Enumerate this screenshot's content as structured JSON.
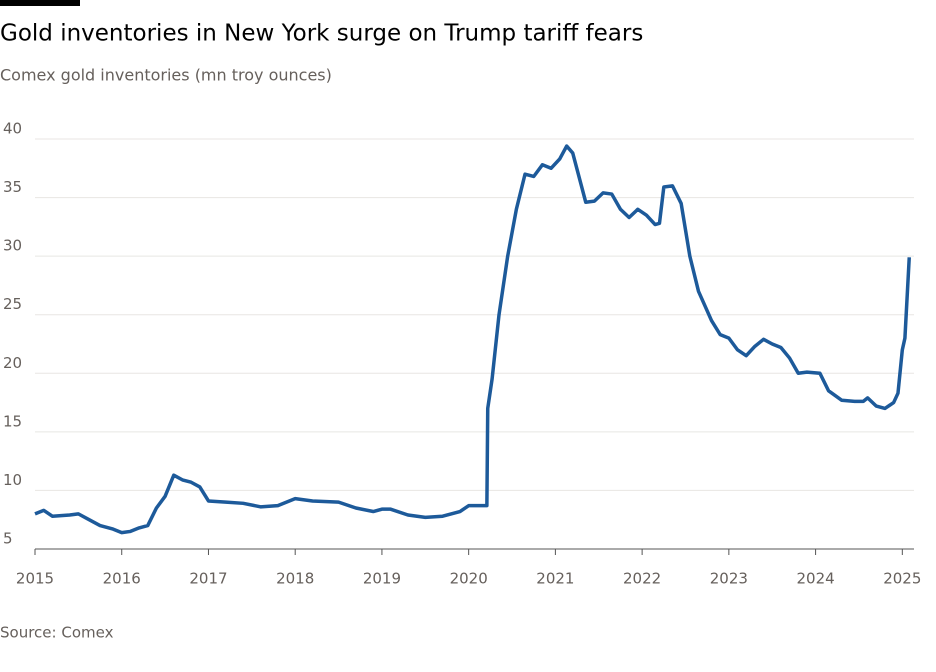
{
  "chart_data": {
    "type": "line",
    "title": "Gold inventories in New York surge on Trump tariff fears",
    "subtitle": "Comex gold inventories (mn troy ounces)",
    "source": "Source: Comex",
    "x": [
      2015.0,
      2015.1,
      2015.2,
      2015.4,
      2015.5,
      2015.6,
      2015.75,
      2015.9,
      2016.0,
      2016.1,
      2016.2,
      2016.3,
      2016.4,
      2016.5,
      2016.6,
      2016.7,
      2016.8,
      2016.9,
      2017.0,
      2017.2,
      2017.4,
      2017.6,
      2017.8,
      2018.0,
      2018.2,
      2018.5,
      2018.7,
      2018.9,
      2019.0,
      2019.1,
      2019.3,
      2019.5,
      2019.7,
      2019.9,
      2020.0,
      2020.21,
      2020.22,
      2020.27,
      2020.35,
      2020.45,
      2020.55,
      2020.65,
      2020.75,
      2020.85,
      2020.95,
      2021.05,
      2021.13,
      2021.2,
      2021.3,
      2021.35,
      2021.45,
      2021.55,
      2021.65,
      2021.75,
      2021.85,
      2021.95,
      2022.05,
      2022.15,
      2022.2,
      2022.25,
      2022.35,
      2022.45,
      2022.55,
      2022.65,
      2022.8,
      2022.9,
      2023.0,
      2023.1,
      2023.2,
      2023.3,
      2023.4,
      2023.5,
      2023.6,
      2023.7,
      2023.8,
      2023.9,
      2024.05,
      2024.15,
      2024.3,
      2024.45,
      2024.55,
      2024.6,
      2024.7,
      2024.8,
      2024.9,
      2024.95,
      2025.0,
      2025.03,
      2025.08
    ],
    "series": [
      {
        "name": "Comex gold inventories",
        "color": "#1d5a9a",
        "values": [
          8.0,
          8.3,
          7.8,
          7.9,
          8.0,
          7.6,
          7.0,
          6.7,
          6.4,
          6.5,
          6.8,
          7.0,
          8.5,
          9.5,
          11.3,
          10.9,
          10.7,
          10.3,
          9.1,
          9.0,
          8.9,
          8.6,
          8.7,
          9.3,
          9.1,
          9.0,
          8.5,
          8.2,
          8.4,
          8.4,
          7.9,
          7.7,
          7.8,
          8.2,
          8.7,
          8.7,
          17,
          19.5,
          25,
          30,
          34,
          37,
          36.8,
          37.8,
          37.5,
          38.3,
          39.4,
          38.8,
          36,
          34.6,
          34.7,
          35.4,
          35.3,
          34.0,
          33.3,
          34.0,
          33.5,
          32.7,
          32.8,
          35.9,
          36.0,
          34.5,
          30,
          27,
          24.5,
          23.3,
          23.0,
          22.0,
          21.5,
          22.3,
          22.9,
          22.5,
          22.2,
          21.3,
          20.0,
          20.1,
          20.0,
          18.5,
          17.7,
          17.6,
          17.6,
          17.9,
          17.2,
          17.0,
          17.5,
          18.3,
          22.0,
          23.0,
          29.9
        ]
      }
    ],
    "xlim": [
      2015,
      2025.25
    ],
    "xticks": [
      2015,
      2016,
      2017,
      2018,
      2019,
      2020,
      2021,
      2022,
      2023,
      2024,
      2025
    ],
    "ylim": [
      5,
      40
    ],
    "yticks": [
      5,
      10,
      15,
      20,
      25,
      30,
      35,
      40
    ],
    "grid": true
  }
}
